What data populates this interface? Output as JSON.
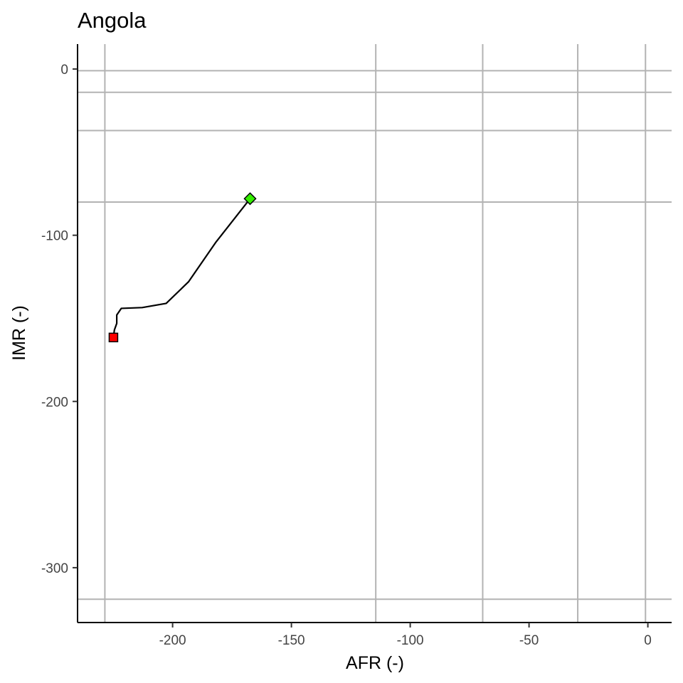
{
  "chart_data": {
    "type": "line",
    "title": "Angola",
    "xlabel": "AFR (-)",
    "ylabel": "IMR (-)",
    "xlim": [
      -240,
      10
    ],
    "ylim": [
      -333,
      15
    ],
    "x_ticks": [
      -200,
      -150,
      -100,
      -50,
      0
    ],
    "y_ticks": [
      0,
      -100,
      -200,
      -300
    ],
    "x_tick_labels": [
      "-200",
      "-150",
      "-100",
      "-50",
      "0"
    ],
    "y_tick_labels": [
      "0",
      "-100",
      "-200",
      "-300"
    ],
    "reference_lines_x": [
      -228.5,
      -114.5,
      -69.5,
      -29.5,
      -1
    ],
    "reference_lines_y": [
      -1,
      -14,
      -37,
      -80,
      -319
    ],
    "series": [
      {
        "x": [
          -167.4,
          -181.7,
          -193.3,
          -202.7,
          -212.8,
          -221.6,
          -223.5,
          -223.5,
          -224.5,
          -224.9
        ],
        "y": [
          -78,
          -104,
          -128,
          -141,
          -143.5,
          -144,
          -148,
          -153,
          -157,
          -161.5
        ],
        "color": "#000000"
      }
    ],
    "start_marker": {
      "x": -224.9,
      "y": -161.5,
      "shape": "square",
      "color": "#ff0000"
    },
    "end_marker": {
      "x": -167.4,
      "y": -78,
      "shape": "diamond",
      "color": "#33ee00"
    },
    "grid": false,
    "reference_line_color": "#b3b3b3"
  }
}
